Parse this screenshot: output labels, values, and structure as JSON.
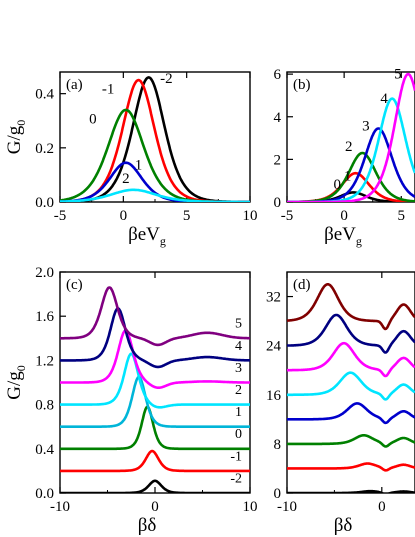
{
  "chart_data": [
    {
      "type": "line",
      "panel_label": "(a)",
      "xlabel_main": "βeV",
      "xlabel_sub": "g",
      "ylabel_main": "G/g",
      "ylabel_sub": "0",
      "xlim": [
        -5,
        10
      ],
      "ylim": [
        0,
        0.48
      ],
      "xticks": [
        -5,
        0,
        5,
        10
      ],
      "yticks": [
        0.0,
        0.2,
        0.4
      ],
      "xtick_labels": [
        "-5",
        "0",
        "5",
        "10"
      ],
      "ytick_labels": [
        "0.0",
        "0.2",
        "0.4"
      ],
      "series": [
        {
          "name": "-2",
          "color": "#000000",
          "peak_x": 2.0,
          "peak_y": 0.46,
          "width": 1.7
        },
        {
          "name": "-1",
          "color": "#ff0000",
          "peak_x": 1.2,
          "peak_y": 0.45,
          "width": 1.7
        },
        {
          "name": "0",
          "color": "#008000",
          "peak_x": 0.2,
          "peak_y": 0.34,
          "width": 1.9
        },
        {
          "name": "1",
          "color": "#0000cc",
          "peak_x": 0.2,
          "peak_y": 0.145,
          "width": 1.7
        },
        {
          "name": "2",
          "color": "#00e5ff",
          "peak_x": 0.8,
          "peak_y": 0.045,
          "width": 2.4
        }
      ],
      "curve_labels": [
        {
          "text": "-2",
          "x": 3.4,
          "y": 0.44,
          "color": "#000000"
        },
        {
          "text": "-1",
          "x": -1.2,
          "y": 0.4,
          "color": "#ff0000"
        },
        {
          "text": "0",
          "x": -2.4,
          "y": 0.29,
          "color": "#008000"
        },
        {
          "text": "1",
          "x": 1.2,
          "y": 0.12,
          "color": "#0000cc"
        },
        {
          "text": "2",
          "x": 0.2,
          "y": 0.07,
          "color": "#00e5ff"
        }
      ]
    },
    {
      "type": "line",
      "panel_label": "(b)",
      "xlabel_main": "βeV",
      "xlabel_sub": "g",
      "xlim": [
        -5,
        6.2
      ],
      "ylim": [
        0,
        6.1
      ],
      "xticks": [
        -5,
        0,
        5
      ],
      "yticks": [
        0,
        2,
        4,
        6
      ],
      "xtick_labels": [
        "-5",
        "0",
        "5"
      ],
      "ytick_labels": [
        "0",
        "2",
        "4",
        "6"
      ],
      "series": [
        {
          "name": "0",
          "color": "#000000",
          "peak_x": 0.8,
          "peak_y": 0.45,
          "width": 1.5
        },
        {
          "name": "1",
          "color": "#ff0000",
          "peak_x": 1.0,
          "peak_y": 1.35,
          "width": 1.6
        },
        {
          "name": "2",
          "color": "#008000",
          "peak_x": 1.6,
          "peak_y": 2.3,
          "width": 1.6
        },
        {
          "name": "3",
          "color": "#0000cc",
          "peak_x": 3.0,
          "peak_y": 3.45,
          "width": 1.6
        },
        {
          "name": "4",
          "color": "#00e5ff",
          "peak_x": 4.2,
          "peak_y": 4.85,
          "width": 1.6
        },
        {
          "name": "5",
          "color": "#ff00ff",
          "peak_x": 5.6,
          "peak_y": 6.0,
          "width": 1.6
        }
      ],
      "curve_labels": [
        {
          "text": "0",
          "x": -0.6,
          "y": 0.6,
          "color": "#000000"
        },
        {
          "text": "1",
          "x": 0.3,
          "y": 1.0,
          "color": "#ff0000"
        },
        {
          "text": "2",
          "x": 0.4,
          "y": 2.4,
          "color": "#008000"
        },
        {
          "text": "3",
          "x": 1.9,
          "y": 3.35,
          "color": "#0000cc"
        },
        {
          "text": "4",
          "x": 3.5,
          "y": 4.65,
          "color": "#00e5ff"
        },
        {
          "text": "5",
          "x": 4.7,
          "y": 5.8,
          "color": "#ff00ff"
        }
      ]
    },
    {
      "type": "line",
      "panel_label": "(c)",
      "xlabel_main": "βδ",
      "ylabel_main": "G/g",
      "ylabel_sub": "0",
      "xlim": [
        -10,
        10
      ],
      "ylim": [
        0,
        2.0
      ],
      "xticks": [
        -10,
        0,
        10
      ],
      "yticks": [
        0.0,
        0.4,
        0.8,
        1.2,
        1.6,
        2.0
      ],
      "xtick_labels": [
        "-10",
        "0",
        "10"
      ],
      "ytick_labels": [
        "0.0",
        "0.4",
        "0.8",
        "1.2",
        "1.6",
        "2.0"
      ],
      "series": [
        {
          "name": "-2",
          "color": "#000000",
          "offset": 0.0,
          "peak_x": 0.0,
          "amp": 0.11,
          "width": 0.9,
          "dip": 0.0,
          "bump": 0.0
        },
        {
          "name": "-1",
          "color": "#ff0000",
          "offset": 0.2,
          "peak_x": -0.3,
          "amp": 0.18,
          "width": 0.9,
          "dip": 0.0,
          "bump": 0.0
        },
        {
          "name": "0",
          "color": "#008000",
          "offset": 0.4,
          "peak_x": -0.8,
          "amp": 0.38,
          "width": 0.8,
          "dip": 0.0,
          "bump": 0.0
        },
        {
          "name": "1",
          "color": "#00b5d8",
          "offset": 0.6,
          "peak_x": -1.7,
          "amp": 0.45,
          "width": 0.95,
          "dip": 0.0,
          "bump": 0.0
        },
        {
          "name": "2",
          "color": "#00e5ff",
          "offset": 0.8,
          "peak_x": -2.5,
          "amp": 0.46,
          "width": 1.0,
          "dip": 0.03,
          "bump": 0.0
        },
        {
          "name": "3",
          "color": "#ff00ff",
          "offset": 1.0,
          "peak_x": -3.1,
          "amp": 0.47,
          "width": 1.05,
          "dip": 0.05,
          "bump": 0.01
        },
        {
          "name": "4",
          "color": "#000080",
          "offset": 1.2,
          "peak_x": -3.9,
          "amp": 0.47,
          "width": 1.05,
          "dip": 0.06,
          "bump": 0.03
        },
        {
          "name": "5",
          "color": "#800080",
          "offset": 1.4,
          "peak_x": -4.8,
          "amp": 0.46,
          "width": 1.15,
          "dip": 0.06,
          "bump": 0.05
        }
      ],
      "curve_labels": [
        {
          "text": "5",
          "y": 1.46
        },
        {
          "text": "4",
          "y": 1.26
        },
        {
          "text": "3",
          "y": 1.06
        },
        {
          "text": "2",
          "y": 0.86
        },
        {
          "text": "1",
          "y": 0.66
        },
        {
          "text": "0",
          "y": 0.46
        },
        {
          "text": "-1",
          "y": 0.26
        },
        {
          "text": "-2",
          "y": 0.06
        }
      ]
    },
    {
      "type": "line",
      "panel_label": "(d)",
      "xlabel_main": "βδ",
      "xlim": [
        -10,
        3.5
      ],
      "ylim": [
        0,
        36
      ],
      "xticks": [
        -10,
        0
      ],
      "yticks": [
        0,
        8,
        16,
        24,
        32
      ],
      "xtick_labels": [
        "-10",
        "0"
      ],
      "ytick_labels": [
        "0",
        "8",
        "16",
        "24",
        "32"
      ],
      "series": [
        {
          "name": "-2",
          "color": "#000000",
          "offset": 0.0,
          "peak_x": -1.2,
          "amp": 0.3,
          "width": 1.2
        },
        {
          "name": "-1",
          "color": "#ff0000",
          "offset": 4.0,
          "peak_x": -1.5,
          "amp": 0.8,
          "width": 1.2
        },
        {
          "name": "0",
          "color": "#008000",
          "offset": 8.0,
          "peak_x": -1.9,
          "amp": 1.4,
          "width": 1.3
        },
        {
          "name": "1",
          "color": "#0000cc",
          "offset": 12.0,
          "peak_x": -2.6,
          "amp": 2.6,
          "width": 1.4
        },
        {
          "name": "2",
          "color": "#00e5ff",
          "offset": 16.0,
          "peak_x": -3.3,
          "amp": 3.6,
          "width": 1.5
        },
        {
          "name": "3",
          "color": "#ff00ff",
          "offset": 20.0,
          "peak_x": -4.0,
          "amp": 4.4,
          "width": 1.5
        },
        {
          "name": "4",
          "color": "#000080",
          "offset": 24.0,
          "peak_x": -4.8,
          "amp": 5.0,
          "width": 1.5
        },
        {
          "name": "5",
          "color": "#800000",
          "offset": 28.0,
          "peak_x": -5.7,
          "amp": 6.0,
          "width": 1.5
        }
      ]
    }
  ]
}
